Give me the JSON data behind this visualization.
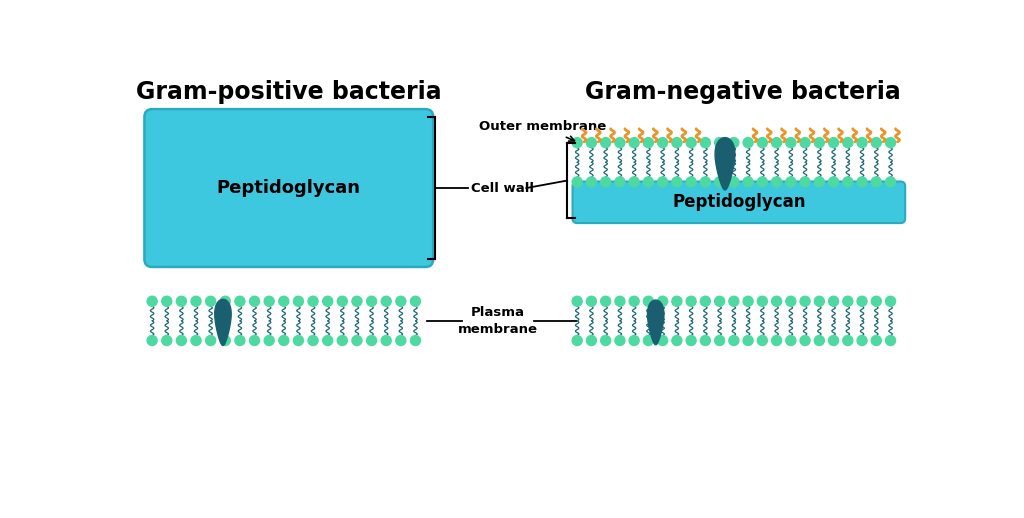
{
  "bg_color": "#ffffff",
  "title_left": "Gram-positive bacteria",
  "title_right": "Gram-negative bacteria",
  "title_fontsize": 17,
  "peptidoglycan_color": "#3ec8e0",
  "peptidoglycan_border": "#2aaabf",
  "head_color": "#4dd9a0",
  "tail_color": "#1a6875",
  "protein_color": "#1a5f70",
  "lps_color": "#e8952a",
  "label_cell_wall": "Cell wall",
  "label_outer_membrane": "Outer membrane",
  "label_plasma_membrane": "Plasma\nmembrane",
  "label_peptidoglycan": "Peptidoglycan",
  "fig_width": 10.24,
  "fig_height": 5.18,
  "dpi": 100
}
